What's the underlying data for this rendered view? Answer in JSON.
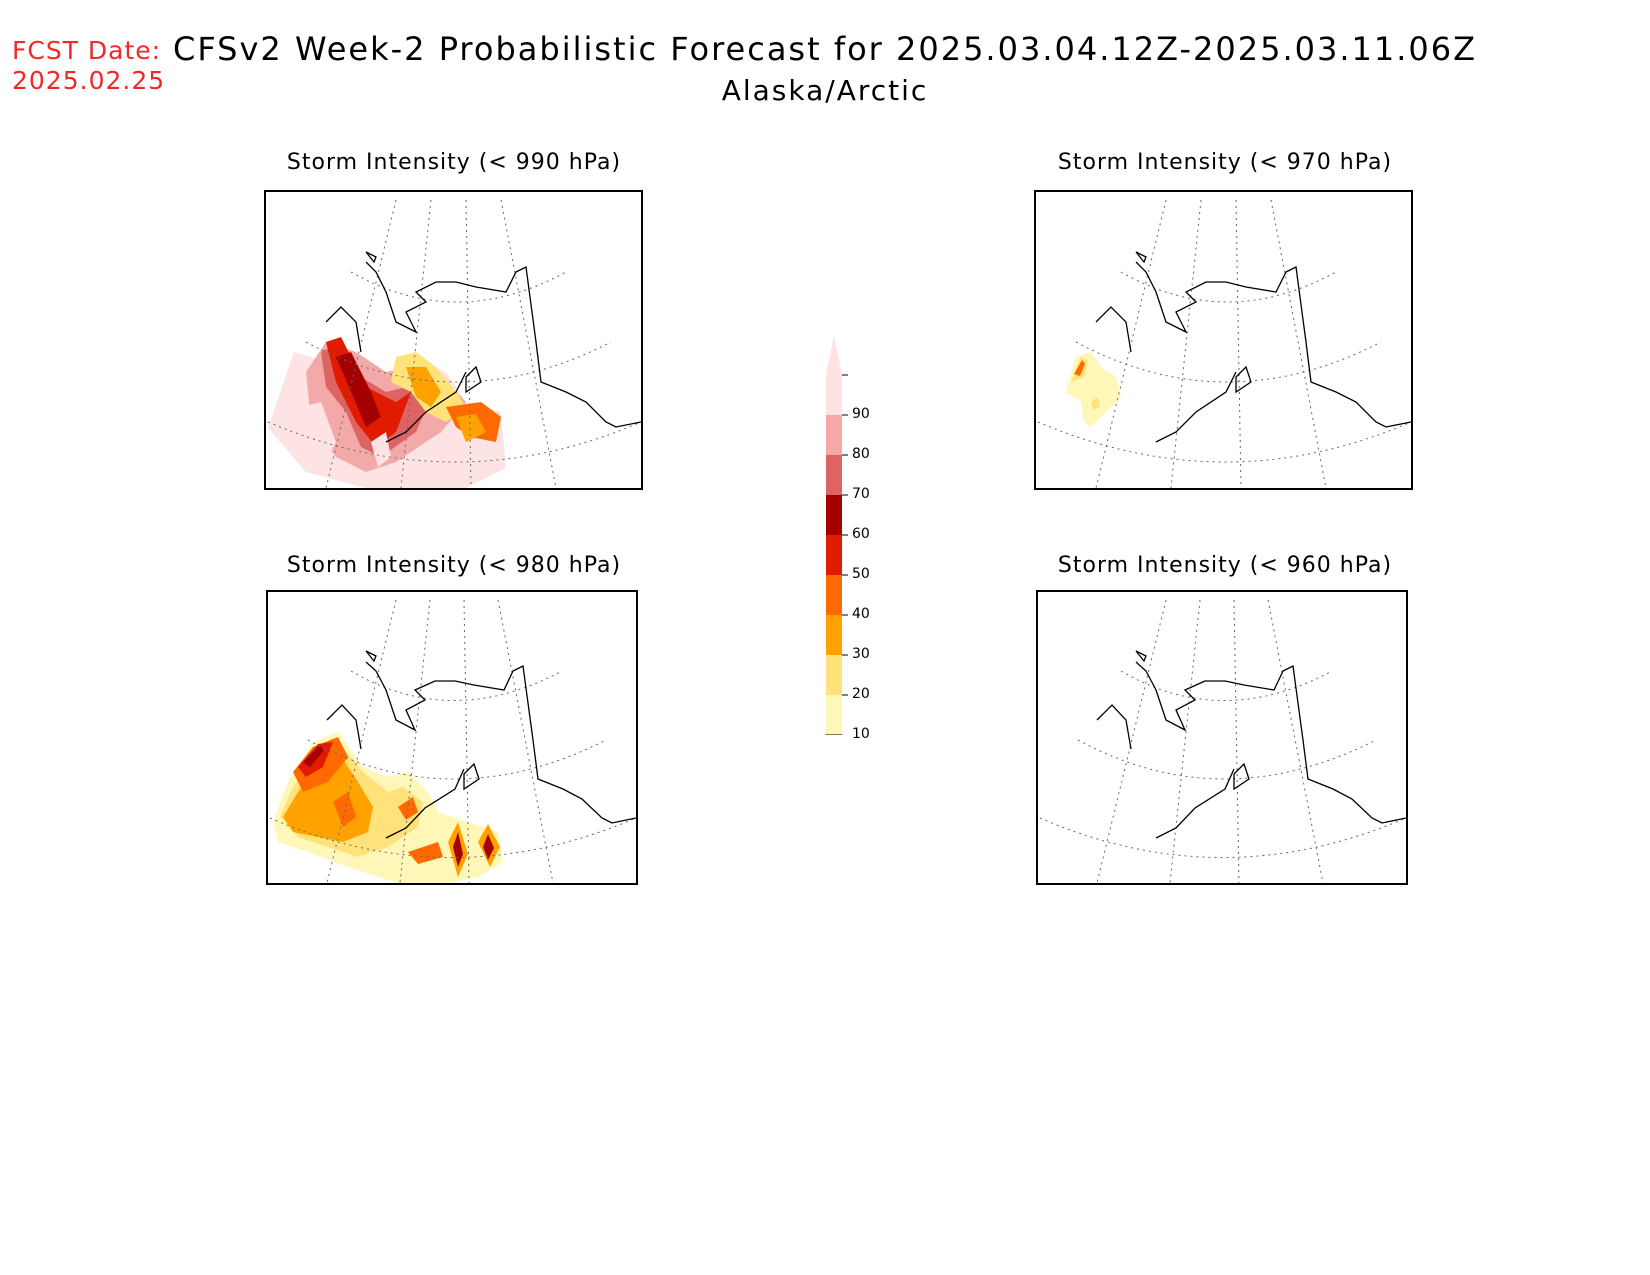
{
  "header": {
    "fcst_label": "FCST Date:",
    "fcst_date": "2025.02.25",
    "title": "CFSv2 Week-2 Probabilistic Forecast for 2025.03.04.12Z-2025.03.11.06Z",
    "region": "Alaska/Arctic"
  },
  "panels": [
    {
      "title": "Storm Intensity (< 990 hPa)",
      "threshold_hpa": 990
    },
    {
      "title": "Storm Intensity (< 970 hPa)",
      "threshold_hpa": 970
    },
    {
      "title": "Storm Intensity (< 980 hPa)",
      "threshold_hpa": 980
    },
    {
      "title": "Storm Intensity (< 960 hPa)",
      "threshold_hpa": 960
    }
  ],
  "colorbar": {
    "labels": [
      "90",
      "80",
      "70",
      "60",
      "50",
      "40",
      "30",
      "20",
      "10"
    ],
    "colors": [
      "#fde3e3",
      "#f4a9a9",
      "#de6464",
      "#a50000",
      "#e01b00",
      "#ff6a00",
      "#ffa200",
      "#ffe27a",
      "#fff7b8"
    ]
  }
}
